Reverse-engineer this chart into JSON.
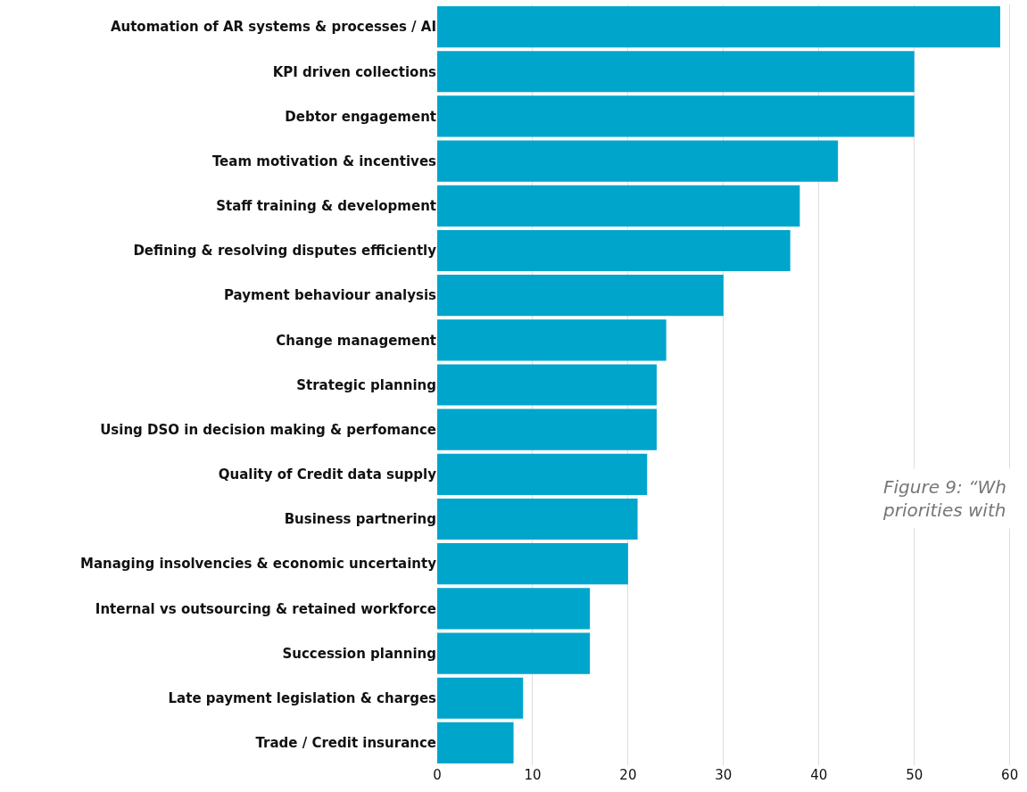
{
  "chart_data": {
    "type": "bar",
    "orientation": "horizontal",
    "categories": [
      "Automation of AR systems & processes / AI",
      "KPI driven collections",
      "Debtor engagement",
      "Team motivation & incentives",
      "Staff training & development",
      "Defining & resolving disputes efficiently",
      "Payment behaviour analysis",
      "Change management",
      "Strategic planning",
      "Using DSO in decision making & perfomance",
      "Quality of Credit data supply",
      "Business partnering",
      "Managing insolvencies & economic uncertainty",
      "Internal vs outsourcing & retained workforce",
      "Succession planning",
      "Late payment legislation & charges",
      "Trade / Credit insurance"
    ],
    "values": [
      59,
      50,
      50,
      42,
      38,
      37,
      30,
      24,
      23,
      23,
      22,
      21,
      20,
      16,
      16,
      9,
      8
    ],
    "color": "#00a5cc",
    "xlim": [
      0,
      60.5
    ],
    "xticks": [
      0,
      10,
      20,
      30,
      40,
      50,
      60
    ],
    "grid": "x",
    "legend": false,
    "annotations": [
      "Figure 9: “Wh\npriorities with"
    ]
  }
}
